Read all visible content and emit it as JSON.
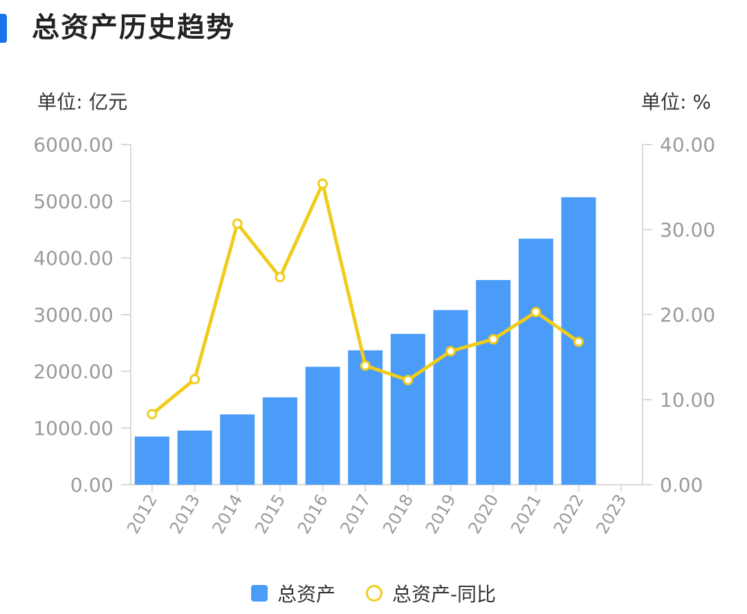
{
  "header": {
    "title": "总资产历史趋势"
  },
  "units": {
    "left": "单位: 亿元",
    "right": "单位: %"
  },
  "colors": {
    "accent": "#1a73e8",
    "bar": "#4a9cf8",
    "line": "#f0cc1c",
    "axis": "#d9d9d9",
    "tick_text": "#9a9a9a"
  },
  "chart_data": {
    "type": "bar",
    "categories": [
      "2012",
      "2013",
      "2014",
      "2015",
      "2016",
      "2017",
      "2018",
      "2019",
      "2020",
      "2021",
      "2022",
      "2023"
    ],
    "series": [
      {
        "name": "总资产",
        "type": "bar",
        "axis": "left",
        "values": [
          850,
          955,
          1240,
          1540,
          2080,
          2370,
          2660,
          3080,
          3610,
          4340,
          5070,
          null
        ]
      },
      {
        "name": "总资产-同比",
        "type": "line",
        "axis": "right",
        "values": [
          8.3,
          12.4,
          30.7,
          24.4,
          35.4,
          14.0,
          12.3,
          15.7,
          17.1,
          20.3,
          16.8,
          null
        ]
      }
    ],
    "y_left": {
      "min": 0,
      "max": 6000,
      "ticks": [
        "0.00",
        "1000.00",
        "2000.00",
        "3000.00",
        "4000.00",
        "5000.00",
        "6000.00"
      ]
    },
    "y_right": {
      "min": 0,
      "max": 40,
      "ticks": [
        "0.00",
        "10.00",
        "20.00",
        "30.00",
        "40.00"
      ]
    },
    "grid": false,
    "legend_position": "bottom"
  }
}
